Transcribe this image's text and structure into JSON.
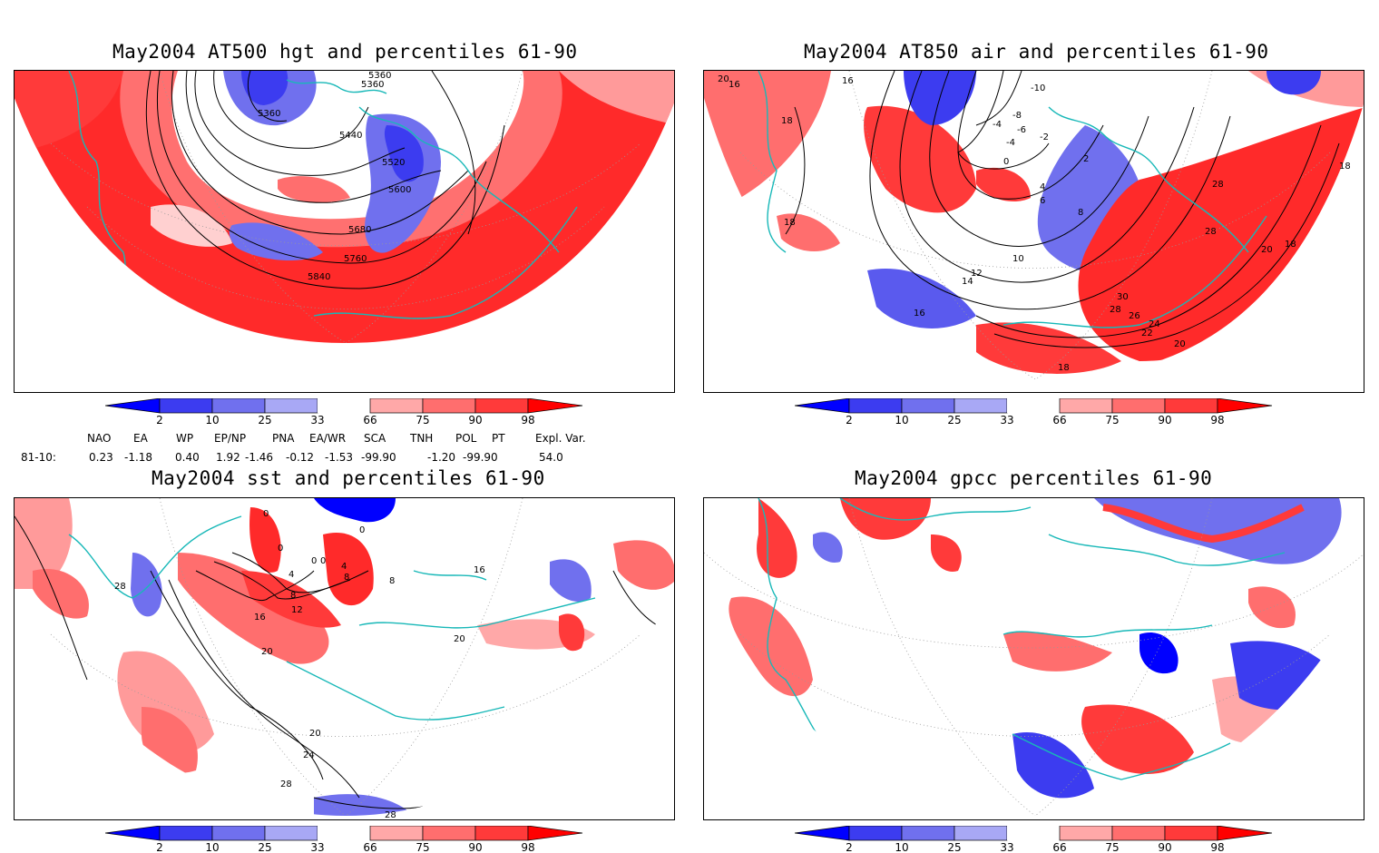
{
  "panels": [
    {
      "id": "p1",
      "title": "May2004 AT500 hgt and percentiles 61-90",
      "contour_labels": [
        "5360",
        "5360",
        "5360",
        "5440",
        "5520",
        "5600",
        "5680",
        "5760",
        "5840"
      ]
    },
    {
      "id": "p2",
      "title": "May2004 AT850 air and percentiles 61-90",
      "contour_labels": [
        "20",
        "16",
        "16",
        "18",
        "18",
        "-10",
        "-4",
        "-8",
        "-4",
        "-6",
        "-2",
        "0",
        "2",
        "4",
        "6",
        "8",
        "10",
        "12",
        "14",
        "16",
        "18",
        "18",
        "20",
        "22",
        "24",
        "26",
        "28",
        "28",
        "28",
        "30",
        "20",
        "18"
      ]
    },
    {
      "id": "p3",
      "title": "May2004 sst and percentiles 61-90",
      "contour_labels": [
        "0",
        "0",
        "0",
        "0",
        "0",
        "4",
        "4",
        "8",
        "8",
        "12",
        "16",
        "16",
        "20",
        "20",
        "20",
        "24",
        "28",
        "28",
        "28",
        "8"
      ]
    },
    {
      "id": "p4",
      "title": "May2004 gpcc percentiles 61-90",
      "contour_labels": []
    }
  ],
  "colorbar": {
    "ticks": [
      "2",
      "10",
      "25",
      "33",
      "66",
      "75",
      "90",
      "98"
    ],
    "colors": {
      "b1": "#0000ff",
      "b2": "#3c3cf0",
      "b3": "#7070ee",
      "b4": "#a8a8f5",
      "r1": "#ffa8a8",
      "r2": "#ff6e6e",
      "r3": "#ff3a3a",
      "r4": "#ff0000"
    }
  },
  "teleconnections": {
    "period": "81-10:",
    "headers": [
      "NAO",
      "EA",
      "WP",
      "EP/NP",
      "PNA",
      "EA/WR",
      "SCA",
      "TNH",
      "POL",
      "PT",
      "Expl. Var."
    ],
    "values": [
      "0.23",
      "-1.18",
      "0.40",
      "1.92",
      "-1.46",
      "-0.12",
      "-1.53",
      "-99.90",
      "-1.20",
      "-99.90",
      "54.0"
    ]
  }
}
